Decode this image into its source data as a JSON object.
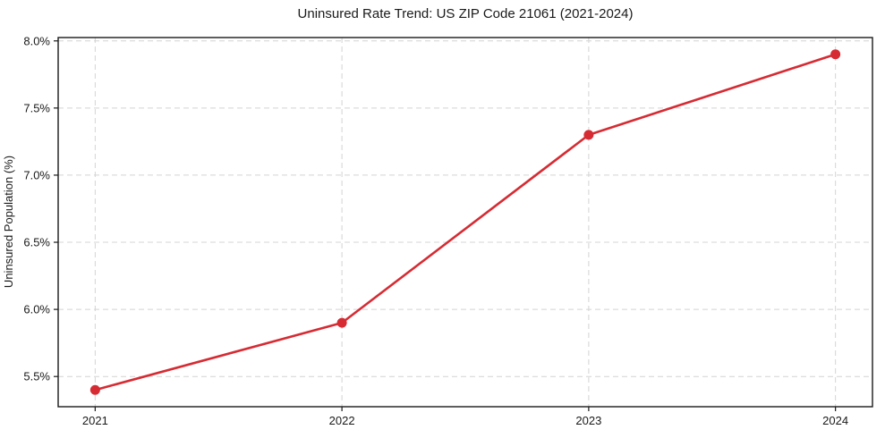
{
  "chart_data": {
    "type": "line",
    "title": "Uninsured Rate Trend: US ZIP Code 21061 (2021-2024)",
    "xlabel": "",
    "ylabel": "Uninsured Population (%)",
    "x": [
      2021,
      2022,
      2023,
      2024
    ],
    "series": [
      {
        "values": [
          5.4,
          5.9,
          7.3,
          7.9
        ]
      }
    ],
    "xlim": [
      2020.85,
      2024.15
    ],
    "ylim": [
      5.275,
      8.025
    ],
    "xticks": {
      "values": [
        2021,
        2022,
        2023,
        2024
      ],
      "labels": [
        "2021",
        "2022",
        "2023",
        "2024"
      ]
    },
    "yticks": {
      "values": [
        5.5,
        6.0,
        6.5,
        7.0,
        7.5,
        8.0
      ],
      "labels": [
        "5.5%",
        "6.0%",
        "6.5%",
        "7.0%",
        "7.5%",
        "8.0%"
      ]
    },
    "grid": "both",
    "grid_line_style": "dashed",
    "legend_position": "none",
    "marker": "circle",
    "colors": {
      "line": "#d62b33",
      "grid": "#d4d4d4",
      "spine": "#1a1a1a",
      "text": "#1a1a1a",
      "background": "#ffffff"
    }
  }
}
